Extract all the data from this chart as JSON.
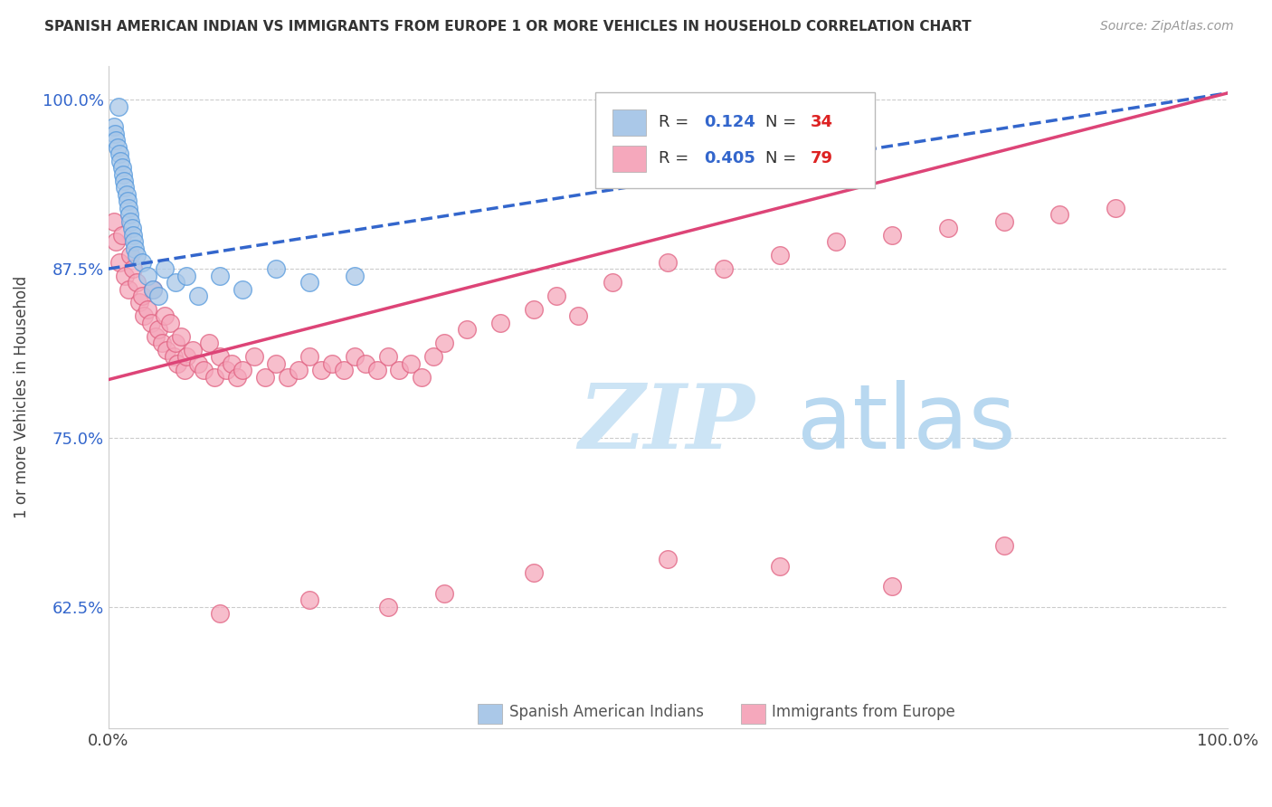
{
  "title": "SPANISH AMERICAN INDIAN VS IMMIGRANTS FROM EUROPE 1 OR MORE VEHICLES IN HOUSEHOLD CORRELATION CHART",
  "source": "Source: ZipAtlas.com",
  "ylabel": "1 or more Vehicles in Household",
  "x_min": 0.0,
  "x_max": 1.0,
  "y_min": 0.535,
  "y_max": 1.025,
  "yticks": [
    0.625,
    0.75,
    0.875,
    1.0
  ],
  "ytick_labels": [
    "62.5%",
    "75.0%",
    "87.5%",
    "100.0%"
  ],
  "xticks": [
    0.0,
    1.0
  ],
  "xtick_labels": [
    "0.0%",
    "100.0%"
  ],
  "blue_R": 0.124,
  "blue_N": 34,
  "pink_R": 0.405,
  "pink_N": 79,
  "blue_color": "#aac8e8",
  "pink_color": "#f5a8bc",
  "blue_edge_color": "#5599dd",
  "pink_edge_color": "#e06080",
  "blue_line_color": "#3366cc",
  "pink_line_color": "#dd4477",
  "watermark_zip": "ZIP",
  "watermark_atlas": "atlas",
  "watermark_color": "#cce4f5",
  "blue_scatter_x": [
    0.005,
    0.006,
    0.007,
    0.008,
    0.009,
    0.01,
    0.011,
    0.012,
    0.013,
    0.014,
    0.015,
    0.016,
    0.017,
    0.018,
    0.019,
    0.02,
    0.021,
    0.022,
    0.023,
    0.024,
    0.025,
    0.03,
    0.035,
    0.04,
    0.045,
    0.05,
    0.06,
    0.07,
    0.08,
    0.1,
    0.12,
    0.15,
    0.18,
    0.22
  ],
  "blue_scatter_y": [
    0.98,
    0.975,
    0.97,
    0.965,
    0.995,
    0.96,
    0.955,
    0.95,
    0.945,
    0.94,
    0.935,
    0.93,
    0.925,
    0.92,
    0.915,
    0.91,
    0.905,
    0.9,
    0.895,
    0.89,
    0.885,
    0.88,
    0.87,
    0.86,
    0.855,
    0.875,
    0.865,
    0.87,
    0.855,
    0.87,
    0.86,
    0.875,
    0.865,
    0.87
  ],
  "pink_scatter_x": [
    0.005,
    0.007,
    0.01,
    0.012,
    0.015,
    0.018,
    0.02,
    0.022,
    0.025,
    0.028,
    0.03,
    0.032,
    0.035,
    0.038,
    0.04,
    0.042,
    0.045,
    0.048,
    0.05,
    0.052,
    0.055,
    0.058,
    0.06,
    0.062,
    0.065,
    0.068,
    0.07,
    0.075,
    0.08,
    0.085,
    0.09,
    0.095,
    0.1,
    0.105,
    0.11,
    0.115,
    0.12,
    0.13,
    0.14,
    0.15,
    0.16,
    0.17,
    0.18,
    0.19,
    0.2,
    0.21,
    0.22,
    0.23,
    0.24,
    0.25,
    0.26,
    0.27,
    0.28,
    0.29,
    0.3,
    0.32,
    0.35,
    0.38,
    0.4,
    0.42,
    0.45,
    0.5,
    0.55,
    0.6,
    0.65,
    0.7,
    0.75,
    0.8,
    0.85,
    0.9,
    0.1,
    0.18,
    0.25,
    0.3,
    0.38,
    0.5,
    0.6,
    0.7,
    0.8
  ],
  "pink_scatter_y": [
    0.91,
    0.895,
    0.88,
    0.9,
    0.87,
    0.86,
    0.885,
    0.875,
    0.865,
    0.85,
    0.855,
    0.84,
    0.845,
    0.835,
    0.86,
    0.825,
    0.83,
    0.82,
    0.84,
    0.815,
    0.835,
    0.81,
    0.82,
    0.805,
    0.825,
    0.8,
    0.81,
    0.815,
    0.805,
    0.8,
    0.82,
    0.795,
    0.81,
    0.8,
    0.805,
    0.795,
    0.8,
    0.81,
    0.795,
    0.805,
    0.795,
    0.8,
    0.81,
    0.8,
    0.805,
    0.8,
    0.81,
    0.805,
    0.8,
    0.81,
    0.8,
    0.805,
    0.795,
    0.81,
    0.82,
    0.83,
    0.835,
    0.845,
    0.855,
    0.84,
    0.865,
    0.88,
    0.875,
    0.885,
    0.895,
    0.9,
    0.905,
    0.91,
    0.915,
    0.92,
    0.62,
    0.63,
    0.625,
    0.635,
    0.65,
    0.66,
    0.655,
    0.64,
    0.67
  ]
}
